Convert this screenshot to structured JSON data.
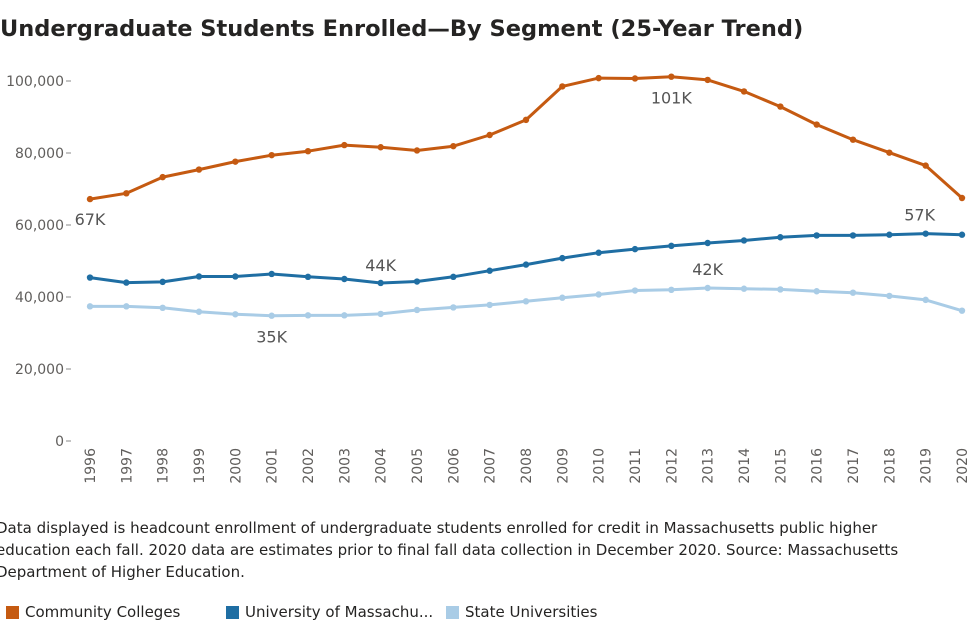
{
  "title": "Undergraduate Students Enrolled—By Segment (25-Year Trend)",
  "caption": "Data displayed is headcount enrollment of undergraduate students enrolled for credit in Massachusetts public higher education each fall. 2020 data are estimates prior to final fall data collection in December 2020. Source: Massachusetts Department of Higher Education.",
  "chart_data": {
    "type": "line",
    "title": "Undergraduate Students Enrolled—By Segment (25-Year Trend)",
    "xlabel": "",
    "ylabel": "",
    "x": [
      "1996",
      "1997",
      "1998",
      "1999",
      "2000",
      "2001",
      "2002",
      "2003",
      "2004",
      "2005",
      "2006",
      "2007",
      "2008",
      "2009",
      "2010",
      "2011",
      "2012",
      "2013",
      "2014",
      "2015",
      "2016",
      "2017",
      "2018",
      "2019",
      "2020"
    ],
    "y_ticks": [
      0,
      20000,
      40000,
      60000,
      80000,
      100000
    ],
    "y_tick_labels": [
      "0",
      "20,000",
      "40,000",
      "60,000",
      "80,000",
      "100,000"
    ],
    "ylim": [
      0,
      100000
    ],
    "grid": false,
    "legend_position": "bottom-left",
    "series": [
      {
        "name": "Community Colleges",
        "color": "#c55a11",
        "values": [
          67200,
          68800,
          73300,
          75400,
          77600,
          79400,
          80500,
          82200,
          81600,
          80700,
          81900,
          85000,
          89200,
          98500,
          100800,
          100700,
          101200,
          100300,
          97100,
          92900,
          87900,
          83700,
          80100,
          76500,
          67500
        ]
      },
      {
        "name": "University of Massachusetts",
        "legend_label": "University of Massachu...",
        "color": "#1f6ea3",
        "values": [
          45400,
          44000,
          44200,
          45700,
          45700,
          46400,
          45600,
          45000,
          43900,
          44300,
          45600,
          47300,
          49000,
          50800,
          52300,
          53300,
          54200,
          55000,
          55700,
          56600,
          57100,
          57100,
          57300,
          57600,
          57300
        ]
      },
      {
        "name": "State Universities",
        "color": "#a9cce6",
        "values": [
          37400,
          37400,
          37000,
          35900,
          35200,
          34800,
          34900,
          34900,
          35300,
          36400,
          37100,
          37800,
          38800,
          39800,
          40700,
          41800,
          42000,
          42500,
          42300,
          42100,
          41600,
          41200,
          40300,
          39200,
          36200
        ]
      }
    ],
    "annotations": [
      {
        "series": 0,
        "x": "1996",
        "text": "67K"
      },
      {
        "series": 0,
        "x": "2012",
        "text": "101K"
      },
      {
        "series": 1,
        "x": "2004",
        "text": "44K"
      },
      {
        "series": 1,
        "x": "2019",
        "text": "57K"
      },
      {
        "series": 2,
        "x": "2001",
        "text": "35K"
      },
      {
        "series": 2,
        "x": "2013",
        "text": "42K"
      }
    ]
  }
}
